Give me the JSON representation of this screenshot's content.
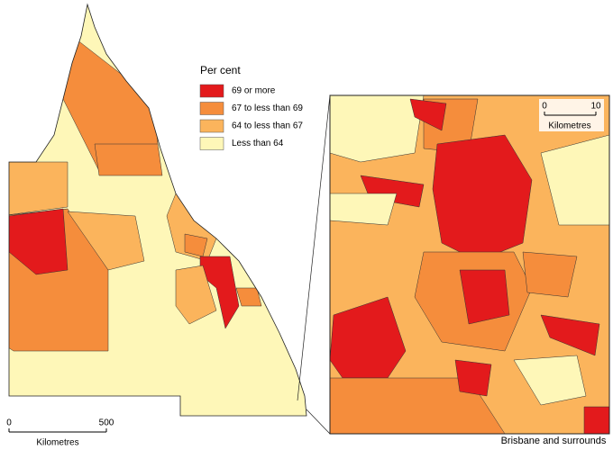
{
  "legend": {
    "title": "Per cent",
    "items": [
      {
        "label": "69 or more",
        "color": "#e31a1c"
      },
      {
        "label": "67 to less than 69",
        "color": "#f58d3c"
      },
      {
        "label": "64 to less than 67",
        "color": "#fbb45c"
      },
      {
        "label": "Less than 64",
        "color": "#fef7b8"
      }
    ]
  },
  "scale_bar": {
    "ticks": [
      0,
      500
    ],
    "unit": "Kilometres"
  },
  "inset": {
    "caption": "Brisbane and surrounds",
    "scale_bar": {
      "ticks": [
        0,
        10
      ],
      "unit": "Kilometres"
    }
  }
}
